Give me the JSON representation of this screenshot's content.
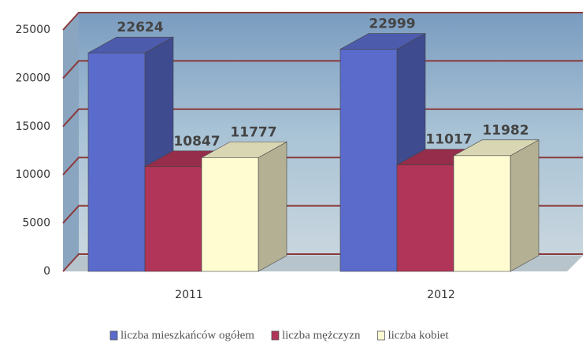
{
  "chart_data": {
    "type": "bar3d",
    "categories": [
      "2011",
      "2012"
    ],
    "series": [
      {
        "name": "liczba mieszkańców ogółem",
        "color": "#5a6bcc",
        "values": [
          22624,
          22999
        ]
      },
      {
        "name": "liczba mężczyzn",
        "color": "#b03558",
        "values": [
          10847,
          11017
        ]
      },
      {
        "name": "liczba kobiet",
        "color": "#fffcd2",
        "values": [
          11777,
          11982
        ]
      }
    ],
    "ylim": [
      0,
      25000
    ],
    "yticks": [
      0,
      5000,
      10000,
      15000,
      20000,
      25000
    ],
    "grid": true,
    "legend": "bottom"
  }
}
